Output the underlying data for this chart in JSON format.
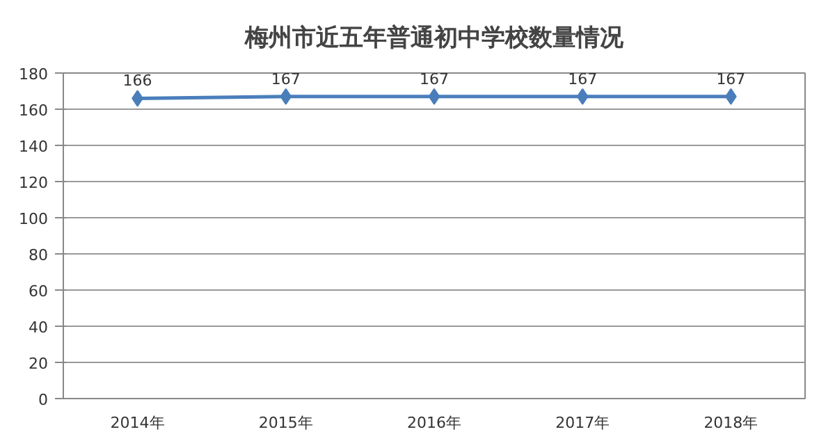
{
  "chart_data": {
    "type": "line",
    "title": "梅州市近五年普通初中学校数量情况",
    "categories": [
      "2014年",
      "2015年",
      "2016年",
      "2017年",
      "2018年"
    ],
    "series": [
      {
        "color": "#4a7ebb",
        "values": [
          166,
          167,
          167,
          167,
          167
        ]
      }
    ],
    "ylim": [
      0,
      180
    ],
    "yticks": [
      0,
      20,
      40,
      60,
      80,
      100,
      120,
      140,
      160,
      180
    ],
    "grid": "y",
    "marker": "diamond",
    "data_labels": true
  }
}
